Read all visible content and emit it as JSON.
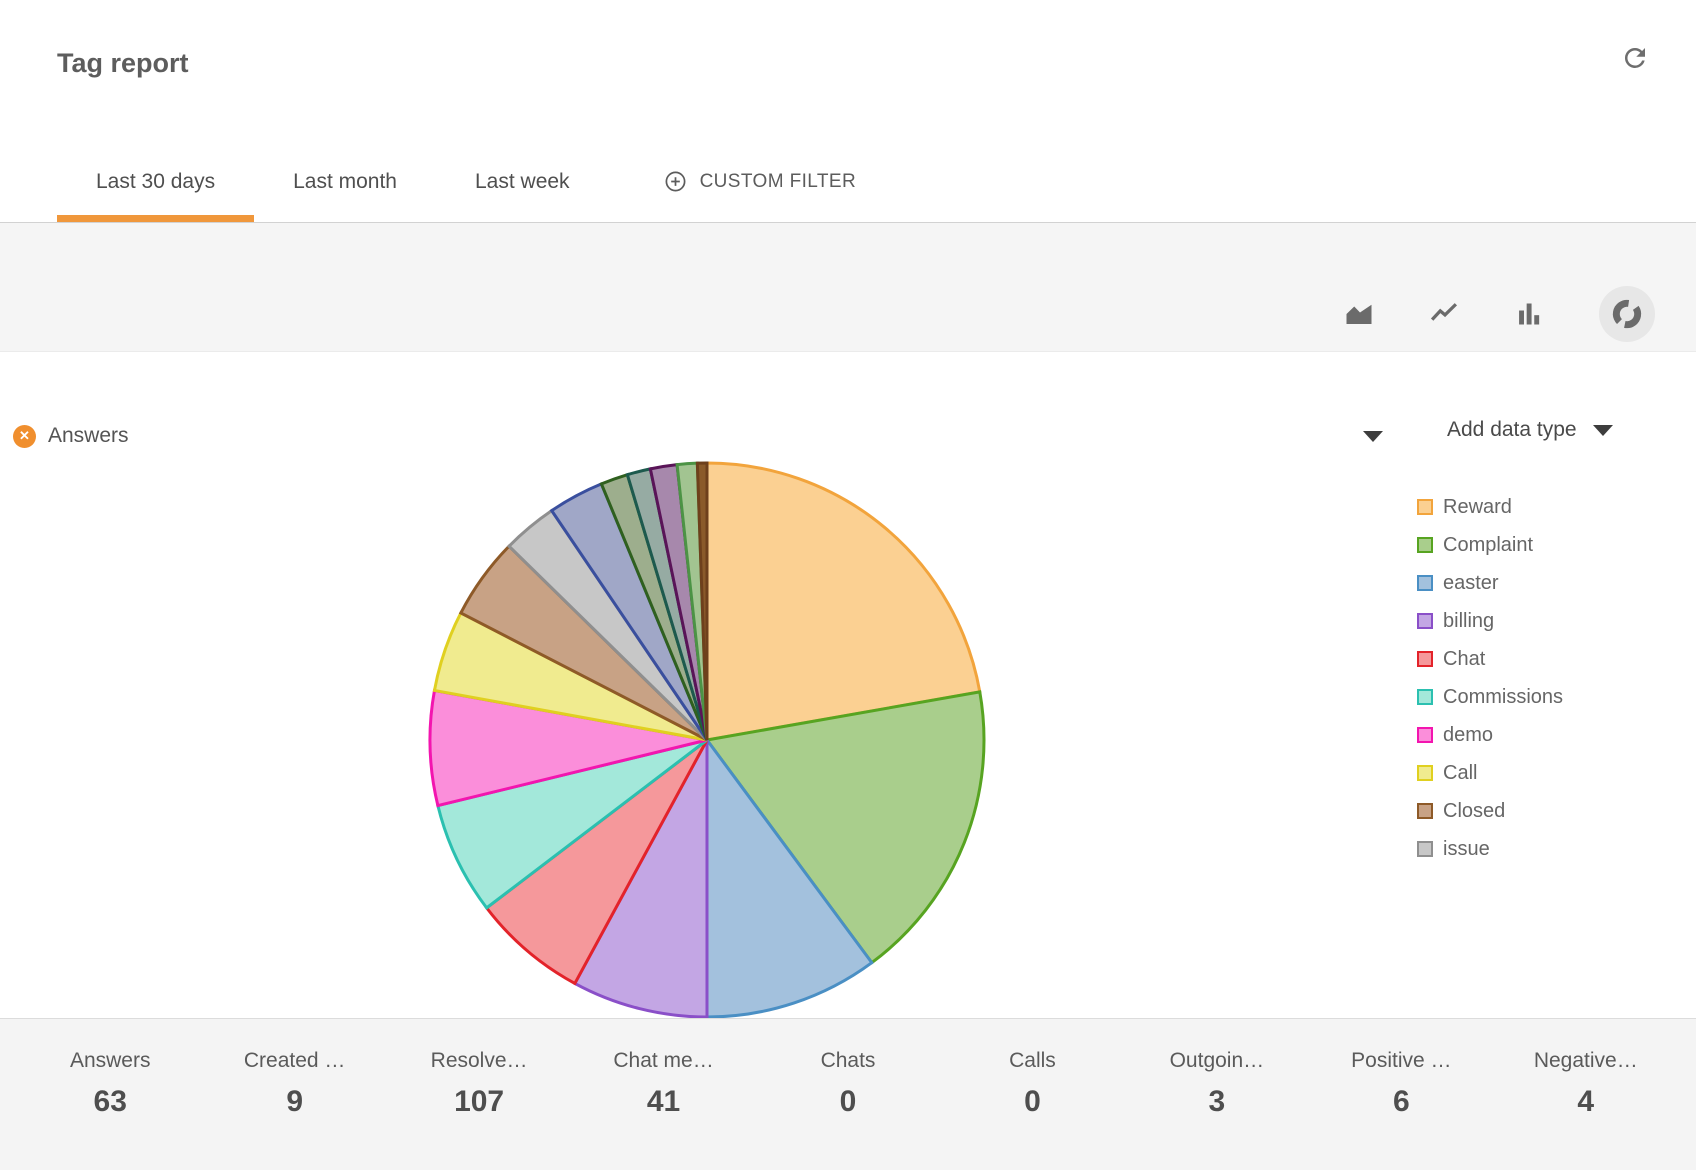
{
  "header": {
    "title": "Tag report"
  },
  "tabs": {
    "items": [
      {
        "label": "Last 30 days",
        "active": true
      },
      {
        "label": "Last month",
        "active": false
      },
      {
        "label": "Last week",
        "active": false
      }
    ],
    "custom_filter_label": "CUSTOM FILTER"
  },
  "toolbar": {
    "chart_type_icons": [
      "area-chart",
      "line-chart",
      "bar-chart",
      "pie-chart"
    ],
    "selected_chart_type": "pie-chart"
  },
  "chart_header": {
    "series_label": "Answers",
    "add_data_type_label": "Add data type"
  },
  "legend": {
    "items": [
      "Reward",
      "Complaint",
      "easter",
      "billing",
      "Chat",
      "Commissions",
      "demo",
      "Call",
      "Closed",
      "issue"
    ]
  },
  "chart_data": {
    "type": "pie",
    "title": "Answers",
    "unit": "degrees of pie (clockwise from 12 o'clock)",
    "legend_position": "right",
    "slices": [
      {
        "label": "Reward",
        "start_deg": 0,
        "end_deg": 80,
        "fill": "#FBD092",
        "stroke": "#F2A43C"
      },
      {
        "label": "Complaint",
        "start_deg": 80,
        "end_deg": 143.5,
        "fill": "#A9CE8C",
        "stroke": "#57A421"
      },
      {
        "label": "easter",
        "start_deg": 143.5,
        "end_deg": 180,
        "fill": "#A3C1DD",
        "stroke": "#4A8FC4"
      },
      {
        "label": "billing",
        "start_deg": 180,
        "end_deg": 208.5,
        "fill": "#C3A6E4",
        "stroke": "#8A4FC8"
      },
      {
        "label": "Chat",
        "start_deg": 208.5,
        "end_deg": 232.7,
        "fill": "#F5989B",
        "stroke": "#E3232A"
      },
      {
        "label": "Commissions",
        "start_deg": 232.7,
        "end_deg": 256.3,
        "fill": "#A3E8DA",
        "stroke": "#2BC0B0"
      },
      {
        "label": "demo",
        "start_deg": 256.3,
        "end_deg": 280.3,
        "fill": "#FB8EDA",
        "stroke": "#F315AF"
      },
      {
        "label": "Call",
        "start_deg": 280.3,
        "end_deg": 297.3,
        "fill": "#F0EB8F",
        "stroke": "#E0D020"
      },
      {
        "label": "Closed",
        "start_deg": 297.3,
        "end_deg": 314.4,
        "fill": "#C8A285",
        "stroke": "#8E5A28"
      },
      {
        "label": "issue",
        "start_deg": 314.4,
        "end_deg": 325.9,
        "fill": "#C7C7C7",
        "stroke": "#8F8F8F"
      },
      {
        "label": "",
        "start_deg": 325.9,
        "end_deg": 337.6,
        "fill": "#A0A7C7",
        "stroke": "#3A4F9E"
      },
      {
        "label": "",
        "start_deg": 337.6,
        "end_deg": 343.3,
        "fill": "#9DAE8D",
        "stroke": "#2F601F"
      },
      {
        "label": "",
        "start_deg": 343.3,
        "end_deg": 348.2,
        "fill": "#96ABA3",
        "stroke": "#1D5A4E"
      },
      {
        "label": "",
        "start_deg": 348.2,
        "end_deg": 353.8,
        "fill": "#A788AC",
        "stroke": "#5A1458"
      },
      {
        "label": "",
        "start_deg": 353.8,
        "end_deg": 358.0,
        "fill": "#A2C491",
        "stroke": "#4C9345"
      },
      {
        "label": "",
        "start_deg": 358.0,
        "end_deg": 360,
        "fill": "#8A5A2A",
        "stroke": "#6E401C"
      }
    ]
  },
  "stats": {
    "items": [
      {
        "label": "Answers",
        "value": "63"
      },
      {
        "label": "Created …",
        "value": "9"
      },
      {
        "label": "Resolve…",
        "value": "107"
      },
      {
        "label": "Chat me…",
        "value": "41"
      },
      {
        "label": "Chats",
        "value": "0"
      },
      {
        "label": "Calls",
        "value": "0"
      },
      {
        "label": "Outgoin…",
        "value": "3"
      },
      {
        "label": "Positive …",
        "value": "6"
      },
      {
        "label": "Negative…",
        "value": "4"
      }
    ]
  },
  "colors": {
    "accent_orange": "#F0973B",
    "chip_orange": "#F08F2E",
    "icon_gray": "#6b6b6b",
    "band_gray": "#f5f5f5",
    "stats_bar_gray": "#f4f4f4",
    "text_gray": "#5d5d5d"
  }
}
